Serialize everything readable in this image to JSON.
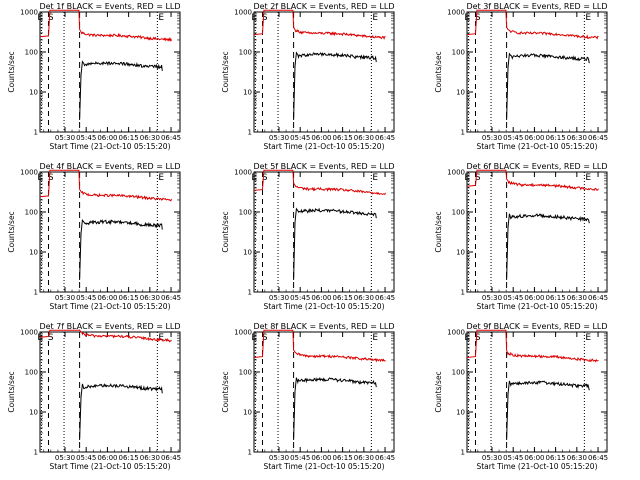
{
  "chart_data": {
    "type": "line",
    "ylabel": "Counts/sec",
    "xlabel": "Start Time (21-Oct-10 05:15:20)",
    "y_scale": "log",
    "ylim": [
      1,
      1000
    ],
    "ytick_labels": [
      "1",
      "10",
      "100",
      "1000"
    ],
    "xtick_labels": [
      "05:30",
      "05:45",
      "06:00",
      "06:15",
      "06:30",
      "06:45"
    ],
    "xtick_values_min": [
      14.67,
      29.67,
      44.67,
      59.67,
      74.67,
      89.67
    ],
    "xlim_min": [
      -3,
      96
    ],
    "line_colors": {
      "events": "#000000",
      "lld": "#dd0000"
    },
    "markers": {
      "start": "E",
      "start2": "S",
      "end": "E"
    },
    "marker_times_min": {
      "E_start": -2.0,
      "S": 4.0,
      "dash_1": 3.0,
      "dot_1": 14.0,
      "dash_2": 25.0,
      "dot_2": 80.0
    },
    "panels": [
      {
        "title": "Det 1f BLACK = Events, RED = LLD",
        "lld_level": 230,
        "lld_spike": 1100,
        "events_level": 48,
        "events_end": 83
      },
      {
        "title": "Det 2f BLACK = Events, RED = LLD",
        "lld_level": 260,
        "lld_spike": 1100,
        "events_level": 80,
        "events_end": 83
      },
      {
        "title": "Det 3f BLACK = Events, RED = LLD",
        "lld_level": 260,
        "lld_spike": 1100,
        "events_level": 75,
        "events_end": 83
      },
      {
        "title": "Det 4f BLACK = Events, RED = LLD",
        "lld_level": 230,
        "lld_spike": 1100,
        "events_level": 52,
        "events_end": 83
      },
      {
        "title": "Det 5f BLACK = Events, RED = LLD",
        "lld_level": 330,
        "lld_spike": 1100,
        "events_level": 100,
        "events_end": 83
      },
      {
        "title": "Det 6f BLACK = Events, RED = LLD",
        "lld_level": 420,
        "lld_spike": 1100,
        "events_level": 75,
        "events_end": 83
      },
      {
        "title": "Det 7f BLACK = Events, RED = LLD",
        "lld_level": 700,
        "lld_spike": 1100,
        "events_level": 42,
        "events_end": 83
      },
      {
        "title": "Det 8f BLACK = Events, RED = LLD",
        "lld_level": 220,
        "lld_spike": 1100,
        "events_level": 60,
        "events_end": 83
      },
      {
        "title": "Det 9f BLACK = Events, RED = LLD",
        "lld_level": 220,
        "lld_spike": 1100,
        "events_level": 50,
        "events_end": 83
      }
    ]
  }
}
